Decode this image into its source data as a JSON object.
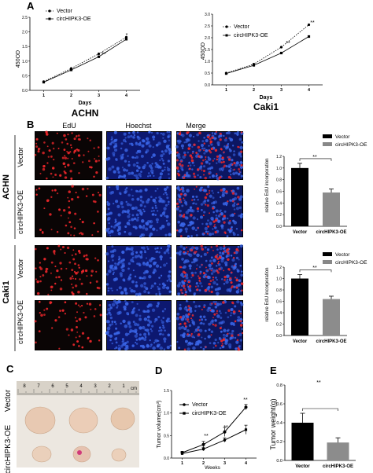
{
  "panels": {
    "A": "A",
    "B": "B",
    "C": "C",
    "D": "D",
    "E": "E"
  },
  "growth_curves": [
    {
      "cell_line": "ACHN",
      "y_axis_label": "450OD",
      "x_axis_label": "Days",
      "legend": [
        "Vector",
        "circHIPK3-OE"
      ],
      "significance": [
        "**",
        "*"
      ],
      "x_ticks": [
        "1",
        "2",
        "3",
        "4"
      ],
      "y_ticks": [
        "0.0",
        "0.5",
        "1.0",
        "1.5",
        "2.0",
        "2.5"
      ]
    },
    {
      "cell_line": "Caki1",
      "y_axis_label": "450OD",
      "x_axis_label": "Days",
      "legend": [
        "Vector",
        "circHIPK3-OE"
      ],
      "significance": [
        "**",
        "**"
      ],
      "x_ticks": [
        "1",
        "2",
        "3",
        "4"
      ],
      "y_ticks": [
        "0.0",
        "0.5",
        "1.0",
        "1.5",
        "2.0",
        "2.5",
        "3.0"
      ]
    }
  ],
  "edu_panel": {
    "column_headers": [
      "EdU",
      "Hoechst",
      "Merge"
    ],
    "groups": [
      {
        "cell_line": "ACHN",
        "rows": [
          "Vector",
          "circHIPK3-OE"
        ]
      },
      {
        "cell_line": "Caki1",
        "rows": [
          "Vector",
          "circHIPK3-OE"
        ]
      }
    ],
    "colors": {
      "edu": "#0a0505",
      "hoechst": "#0d1870",
      "merge": "#0c1662",
      "nucleus_red": "#e8262a",
      "nucleus_blue": "#3a66e8"
    }
  },
  "edu_bars": [
    {
      "y_axis_label": "relative EdU incorporation",
      "legend": [
        "Vector",
        "circHIPK3-OE"
      ],
      "significance": "**",
      "categories": [
        "Vector",
        "circHIPK3-OE"
      ],
      "y_ticks": [
        "0.0",
        "0.2",
        "0.4",
        "0.6",
        "0.8",
        "1.0",
        "1.2"
      ]
    },
    {
      "y_axis_label": "relative EdU incorporation",
      "legend": [
        "Vector",
        "circHIPK3-OE"
      ],
      "significance": "**",
      "categories": [
        "Vector",
        "circHIPK3-OE"
      ],
      "y_ticks": [
        "0.0",
        "0.2",
        "0.4",
        "0.6",
        "0.8",
        "1.0",
        "1.2"
      ]
    }
  ],
  "tumor_photo": {
    "row_labels": [
      "Vector",
      "circHIPK3-OE"
    ],
    "ruler_unit": "cm",
    "ruler_numbers": [
      "8",
      "7",
      "6",
      "5",
      "4",
      "3",
      "2",
      "1"
    ]
  },
  "tumor_volume": {
    "y_axis_label": "Tumor volume(cm³)",
    "x_axis_label": "Weeks",
    "legend": [
      "Vector",
      "circHIPK3-OE"
    ],
    "significance": [
      "**",
      "**",
      "**"
    ],
    "x_ticks": [
      "1",
      "2",
      "3",
      "4"
    ],
    "y_ticks": [
      "0.0",
      "0.5",
      "1.0",
      "1.5"
    ]
  },
  "tumor_weight": {
    "y_axis_label": "Tumor weight(g)",
    "significance": "**",
    "categories": [
      "Vector",
      "circHIPK3-OE"
    ],
    "y_ticks": [
      "0.0",
      "0.2",
      "0.4",
      "0.6",
      "0.8"
    ]
  },
  "chart_data": [
    {
      "type": "line",
      "title": "ACHN",
      "xlabel": "Days",
      "ylabel": "450OD",
      "x": [
        1,
        2,
        3,
        4
      ],
      "ylim": [
        0,
        2.5
      ],
      "series": [
        {
          "name": "Vector",
          "values": [
            0.3,
            0.75,
            1.25,
            1.82
          ]
        },
        {
          "name": "circHIPK3-OE",
          "values": [
            0.28,
            0.7,
            1.15,
            1.75
          ]
        }
      ]
    },
    {
      "type": "line",
      "title": "Caki1",
      "xlabel": "Days",
      "ylabel": "450OD",
      "x": [
        1,
        2,
        3,
        4
      ],
      "ylim": [
        0,
        3.0
      ],
      "series": [
        {
          "name": "Vector",
          "values": [
            0.5,
            0.88,
            1.6,
            2.55
          ]
        },
        {
          "name": "circHIPK3-OE",
          "values": [
            0.48,
            0.83,
            1.35,
            2.05
          ]
        }
      ]
    },
    {
      "type": "bar",
      "ylabel": "relative EdU incorporation",
      "categories": [
        "Vector",
        "circHIPK3-OE"
      ],
      "values": [
        1.0,
        0.58
      ],
      "errors": [
        0.08,
        0.06
      ],
      "ylim": [
        0,
        1.2
      ]
    },
    {
      "type": "bar",
      "ylabel": "relative EdU incorporation",
      "categories": [
        "Vector",
        "circHIPK3-OE"
      ],
      "values": [
        1.0,
        0.64
      ],
      "errors": [
        0.07,
        0.05
      ],
      "ylim": [
        0,
        1.2
      ]
    },
    {
      "type": "line",
      "xlabel": "Weeks",
      "ylabel": "Tumor volume(cm³)",
      "x": [
        1,
        2,
        3,
        4
      ],
      "ylim": [
        0,
        1.5
      ],
      "series": [
        {
          "name": "Vector",
          "values": [
            0.12,
            0.3,
            0.58,
            1.13
          ]
        },
        {
          "name": "circHIPK3-OE",
          "values": [
            0.1,
            0.2,
            0.4,
            0.63
          ]
        }
      ]
    },
    {
      "type": "bar",
      "ylabel": "Tumor weight(g)",
      "categories": [
        "Vector",
        "circHIPK3-OE"
      ],
      "values": [
        0.4,
        0.19
      ],
      "errors": [
        0.1,
        0.05
      ],
      "ylim": [
        0,
        0.8
      ]
    }
  ]
}
